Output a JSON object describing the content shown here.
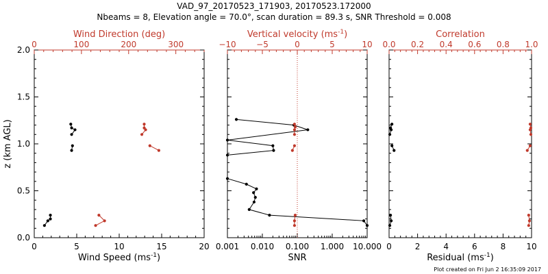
{
  "title_line1": "VAD_97_20170523_171903, 20170523.172000",
  "title_line2": "Nbeams = 8, Elevation angle = 70.0°, scan duration = 89.3 s, SNR Threshold = 0.008",
  "plot_created": "Plot created on Fri Jun  2 16:35:09 2017",
  "colors": {
    "black": "#000000",
    "red": "#c0392b"
  },
  "chart_data": [
    {
      "type": "line",
      "ylabel": "z (km AGL)",
      "ylim": [
        0,
        2.0
      ],
      "y_ticks": [
        "0.0",
        "0.5",
        "1.0",
        "1.5",
        "2.0"
      ],
      "bottom_axis": {
        "label": "Wind Speed (ms",
        "label_sup": "-1",
        "label_close": ")",
        "range": [
          0,
          20
        ],
        "ticks": [
          "0",
          "5",
          "10",
          "15",
          "20"
        ]
      },
      "top_axis": {
        "label": "Wind Direction (deg)",
        "range": [
          0,
          360
        ],
        "ticks": [
          "0",
          "100",
          "200",
          "300"
        ]
      },
      "series": [
        {
          "axis": "bottom",
          "color": "#000000",
          "segments": [
            [
              {
                "x": 4.3,
                "y": 1.21
              },
              {
                "x": 4.4,
                "y": 1.17
              },
              {
                "x": 4.8,
                "y": 1.15
              },
              {
                "x": 4.4,
                "y": 1.1
              }
            ],
            [
              {
                "x": 4.5,
                "y": 0.98
              },
              {
                "x": 4.4,
                "y": 0.93
              }
            ],
            [
              {
                "x": 1.9,
                "y": 0.24
              },
              {
                "x": 1.9,
                "y": 0.2
              },
              {
                "x": 1.6,
                "y": 0.18
              },
              {
                "x": 1.2,
                "y": 0.13
              }
            ]
          ]
        },
        {
          "axis": "top",
          "color": "#c0392b",
          "segments": [
            [
              {
                "x": 233,
                "y": 1.21
              },
              {
                "x": 233,
                "y": 1.17
              },
              {
                "x": 236,
                "y": 1.15
              },
              {
                "x": 228,
                "y": 1.1
              }
            ],
            [
              {
                "x": 245,
                "y": 0.98
              },
              {
                "x": 264,
                "y": 0.93
              }
            ],
            [
              {
                "x": 137,
                "y": 0.24
              },
              {
                "x": 149,
                "y": 0.18
              },
              {
                "x": 130,
                "y": 0.13
              }
            ]
          ]
        }
      ]
    },
    {
      "type": "line",
      "ylim": [
        0,
        2.0
      ],
      "bottom_axis": {
        "label": "SNR",
        "scale": "log",
        "range": [
          0.001,
          10
        ],
        "ticks": [
          "0.001",
          "0.010",
          "0.100",
          "1.000",
          "10.000"
        ]
      },
      "top_axis": {
        "label": "Vertical velocity (ms",
        "label_sup": "-1",
        "label_close": ")",
        "range": [
          -10,
          10
        ],
        "ticks": [
          "−10",
          "−5",
          "0",
          "5",
          "10"
        ]
      },
      "reference_line": {
        "axis": "top",
        "x": 0,
        "style": "dotted",
        "color": "#c0392b"
      },
      "series": [
        {
          "axis": "bottom",
          "color": "#000000",
          "segments": [
            [
              {
                "x": 0.0018,
                "y": 1.26
              },
              {
                "x": 0.08,
                "y": 1.2
              },
              {
                "x": 0.2,
                "y": 1.15
              },
              {
                "x": 0.001,
                "y": 1.04
              },
              {
                "x": 0.02,
                "y": 0.98
              },
              {
                "x": 0.021,
                "y": 0.93
              },
              {
                "x": 0.001,
                "y": 0.88
              }
            ],
            [
              {
                "x": 0.001,
                "y": 0.63
              },
              {
                "x": 0.0035,
                "y": 0.57
              },
              {
                "x": 0.0068,
                "y": 0.52
              },
              {
                "x": 0.0056,
                "y": 0.48
              },
              {
                "x": 0.0063,
                "y": 0.43
              },
              {
                "x": 0.0058,
                "y": 0.38
              },
              {
                "x": 0.0042,
                "y": 0.3
              },
              {
                "x": 0.016,
                "y": 0.24
              },
              {
                "x": 8.0,
                "y": 0.18
              },
              {
                "x": 10.0,
                "y": 0.13
              }
            ]
          ]
        },
        {
          "axis": "top",
          "color": "#c0392b",
          "segments": [
            [
              {
                "x": -0.4,
                "y": 1.21
              },
              {
                "x": -0.3,
                "y": 1.18
              },
              {
                "x": -0.4,
                "y": 1.15
              },
              {
                "x": -0.4,
                "y": 1.1
              }
            ],
            [
              {
                "x": -0.4,
                "y": 0.98
              },
              {
                "x": -0.7,
                "y": 0.93
              }
            ],
            [
              {
                "x": -0.3,
                "y": 0.24
              },
              {
                "x": -0.4,
                "y": 0.18
              },
              {
                "x": -0.4,
                "y": 0.13
              }
            ]
          ]
        }
      ]
    },
    {
      "type": "line",
      "ylim": [
        0,
        2.0
      ],
      "bottom_axis": {
        "label": "Residual (ms",
        "label_sup": "-1",
        "label_close": ")",
        "range": [
          0,
          10
        ],
        "ticks": [
          "0",
          "2",
          "4",
          "6",
          "8",
          "10"
        ]
      },
      "top_axis": {
        "label": "Correlation",
        "range": [
          0,
          1.0
        ],
        "ticks": [
          "0.0",
          "0.2",
          "0.4",
          "0.6",
          "0.8",
          "1.0"
        ]
      },
      "series": [
        {
          "axis": "bottom",
          "color": "#000000",
          "segments": [
            [
              {
                "x": 0.2,
                "y": 1.21
              },
              {
                "x": 0.1,
                "y": 1.17
              },
              {
                "x": 0.15,
                "y": 1.15
              },
              {
                "x": 0.05,
                "y": 1.1
              }
            ],
            [
              {
                "x": 0.2,
                "y": 0.98
              },
              {
                "x": 0.35,
                "y": 0.93
              }
            ],
            [
              {
                "x": 0.1,
                "y": 0.24
              },
              {
                "x": 0.15,
                "y": 0.18
              },
              {
                "x": 0.05,
                "y": 0.13
              }
            ]
          ]
        },
        {
          "axis": "top",
          "color": "#c0392b",
          "segments": [
            [
              {
                "x": 0.99,
                "y": 1.21
              },
              {
                "x": 0.995,
                "y": 1.17
              },
              {
                "x": 0.99,
                "y": 1.15
              },
              {
                "x": 0.995,
                "y": 1.1
              }
            ],
            [
              {
                "x": 0.99,
                "y": 0.98
              },
              {
                "x": 0.97,
                "y": 0.93
              }
            ],
            [
              {
                "x": 0.98,
                "y": 0.24
              },
              {
                "x": 0.985,
                "y": 0.18
              },
              {
                "x": 0.98,
                "y": 0.13
              }
            ]
          ]
        }
      ]
    }
  ]
}
